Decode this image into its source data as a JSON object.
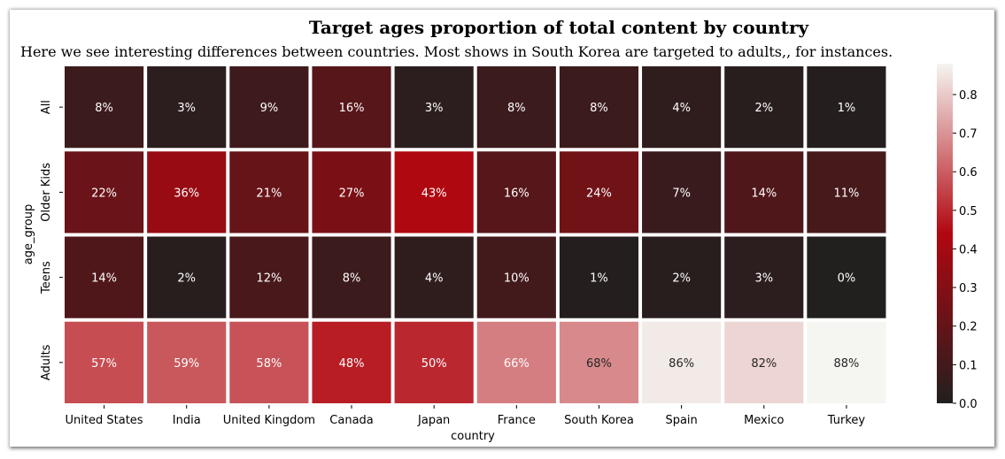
{
  "chart_data": {
    "type": "heatmap",
    "title": "Target ages proportion of total content by country",
    "subtitle": "Here we see interesting differences between countries. Most shows in South Korea are targeted to adults,, for instances.",
    "xlabel": "country",
    "ylabel": "age_group",
    "x_categories": [
      "United States",
      "India",
      "United Kingdom",
      "Canada",
      "Japan",
      "France",
      "South Korea",
      "Spain",
      "Mexico",
      "Turkey"
    ],
    "y_categories": [
      "All",
      "Older Kids",
      "Teens",
      "Adults"
    ],
    "values": [
      [
        0.08,
        0.03,
        0.09,
        0.16,
        0.03,
        0.08,
        0.08,
        0.04,
        0.02,
        0.01
      ],
      [
        0.22,
        0.36,
        0.21,
        0.27,
        0.43,
        0.16,
        0.24,
        0.07,
        0.14,
        0.11
      ],
      [
        0.14,
        0.02,
        0.12,
        0.08,
        0.04,
        0.1,
        0.01,
        0.02,
        0.03,
        0.0
      ],
      [
        0.57,
        0.59,
        0.58,
        0.48,
        0.5,
        0.66,
        0.68,
        0.86,
        0.82,
        0.88
      ]
    ],
    "cell_labels": [
      [
        "8%",
        "3%",
        "9%",
        "16%",
        "3%",
        "8%",
        "8%",
        "4%",
        "2%",
        "1%"
      ],
      [
        "22%",
        "36%",
        "21%",
        "27%",
        "43%",
        "16%",
        "24%",
        "7%",
        "14%",
        "11%"
      ],
      [
        "14%",
        "2%",
        "12%",
        "8%",
        "4%",
        "10%",
        "1%",
        "2%",
        "3%",
        "0%"
      ],
      [
        "57%",
        "59%",
        "58%",
        "48%",
        "50%",
        "66%",
        "68%",
        "86%",
        "82%",
        "88%"
      ]
    ],
    "colorbar": {
      "range": [
        0.0,
        0.88
      ],
      "ticks": [
        "0.0",
        "0.1",
        "0.2",
        "0.3",
        "0.4",
        "0.5",
        "0.6",
        "0.7",
        "0.8"
      ],
      "colormap": [
        "#221f1f",
        "#b20710",
        "#f5f5f1"
      ]
    }
  }
}
